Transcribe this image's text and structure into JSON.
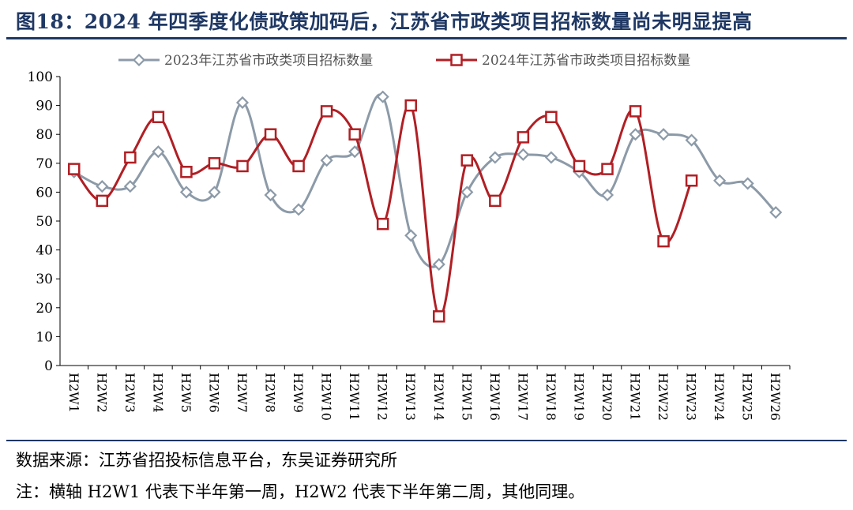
{
  "figure": {
    "title": "图18：2024 年四季度化债政策加码后，江苏省市政类项目招标数量尚未明显提高",
    "source": "数据来源：江苏省招投标信息平台，东吴证券研究所",
    "note": "注：横轴 H2W1 代表下半年第一周，H2W2 代表下半年第二周，其他同理。"
  },
  "chart_data": {
    "type": "line",
    "title": "",
    "xlabel": "",
    "ylabel": "",
    "ylim": [
      0,
      100
    ],
    "yticks": [
      0,
      10,
      20,
      30,
      40,
      50,
      60,
      70,
      80,
      90,
      100
    ],
    "categories": [
      "H2W1",
      "H2W2",
      "H2W3",
      "H2W4",
      "H2W5",
      "H2W6",
      "H2W7",
      "H2W8",
      "H2W9",
      "H2W10",
      "H2W11",
      "H2W12",
      "H2W13",
      "H2W14",
      "H2W15",
      "H2W16",
      "H2W17",
      "H2W18",
      "H2W19",
      "H2W20",
      "H2W21",
      "H2W22",
      "H2W23",
      "H2W24",
      "H2W25",
      "H2W26"
    ],
    "legend_position": "top",
    "grid": false,
    "series": [
      {
        "name": "2023年江苏省市政类项目招标数量",
        "color": "#8c9aa8",
        "marker": "diamond",
        "values": [
          67,
          62,
          62,
          74,
          60,
          60,
          91,
          59,
          54,
          71,
          74,
          93,
          45,
          35,
          60,
          72,
          73,
          72,
          67,
          59,
          80,
          80,
          78,
          64,
          63,
          53
        ]
      },
      {
        "name": "2024年江苏省市政类项目招标数量",
        "color": "#b01f24",
        "marker": "square",
        "values": [
          68,
          57,
          72,
          86,
          67,
          70,
          69,
          80,
          69,
          88,
          80,
          49,
          90,
          17,
          71,
          57,
          79,
          86,
          69,
          68,
          88,
          43,
          64,
          null,
          null,
          null
        ]
      }
    ]
  }
}
